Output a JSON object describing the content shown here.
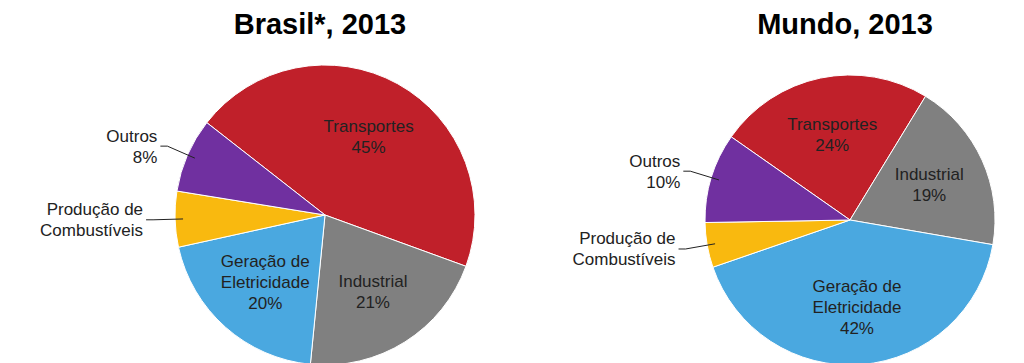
{
  "chart_data": [
    {
      "type": "pie",
      "title": "Brasil*, 2013",
      "categories": [
        "Transportes",
        "Industrial",
        "Geração de Eletricidade",
        "Produção de Combustíveis",
        "Outros"
      ],
      "values": [
        45,
        21,
        20,
        6,
        8
      ],
      "value_labels": [
        "45%",
        "21%",
        "20%",
        null,
        "8%"
      ],
      "colors": [
        "#c0202a",
        "#808080",
        "#4aa8e0",
        "#f9b90f",
        "#7030a0"
      ],
      "data_labels": true
    },
    {
      "type": "pie",
      "title": "Mundo, 2013",
      "categories": [
        "Transportes",
        "Industrial",
        "Geração de Eletricidade",
        "Produção de Combustíveis",
        "Outros"
      ],
      "values": [
        24,
        19,
        42,
        5,
        10
      ],
      "value_labels": [
        "24%",
        "19%",
        "42%",
        null,
        "10%"
      ],
      "colors": [
        "#c0202a",
        "#808080",
        "#4aa8e0",
        "#f9b90f",
        "#7030a0"
      ],
      "data_labels": true
    }
  ]
}
